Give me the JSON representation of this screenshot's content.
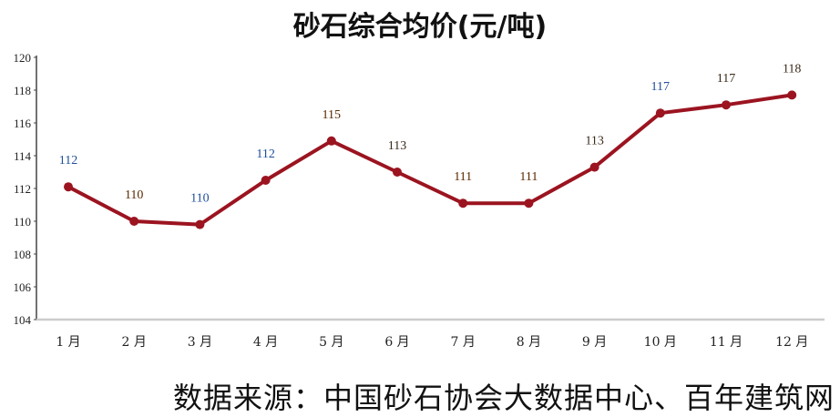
{
  "chart_data": {
    "type": "line",
    "title": "砂石综合均价(元/吨)",
    "categories": [
      "1 月",
      "2 月",
      "3 月",
      "4 月",
      "5 月",
      "6 月",
      "7 月",
      "8 月",
      "9 月",
      "10 月",
      "11 月",
      "12 月"
    ],
    "series": [
      {
        "values": [
          112.1,
          110.0,
          109.8,
          112.5,
          114.9,
          113.0,
          111.1,
          111.1,
          113.3,
          116.6,
          117.1,
          117.7
        ],
        "data_labels": [
          "112",
          "110",
          "110",
          "112",
          "115",
          "113",
          "111",
          "111",
          "113",
          "117",
          "117",
          "118"
        ],
        "color": "#9b1420"
      }
    ],
    "label_colors": [
      "#1f4e9a",
      "#5a2a00",
      "#1f4e9a",
      "#1f4e9a",
      "#5a2a00",
      "#3a2a1a",
      "#5a2a00",
      "#5a2a00",
      "#3a2a1a",
      "#1f4e9a",
      "#3a2a1a",
      "#3a2a1a"
    ],
    "ylim": [
      104,
      120
    ],
    "yticks": [
      104,
      106,
      108,
      110,
      112,
      114,
      116,
      118,
      120
    ],
    "xlabel": "",
    "ylabel": "",
    "grid": false
  },
  "source": "数据来源：中国砂石协会大数据中心、百年建筑网"
}
